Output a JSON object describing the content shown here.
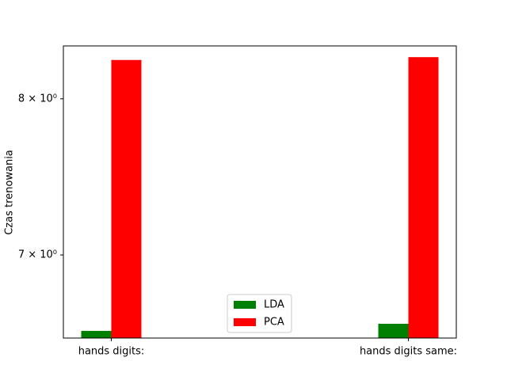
{
  "chart_data": {
    "type": "bar",
    "categories": [
      "hands digits:",
      "hands digits same:"
    ],
    "series": [
      {
        "name": "LDA",
        "color": "#008000",
        "values": [
          6.56,
          6.6
        ]
      },
      {
        "name": "PCA",
        "color": "#ff0000",
        "values": [
          8.27,
          8.29
        ]
      }
    ],
    "ylabel": "Czas trenowania",
    "xlabel": "",
    "yscale": "log",
    "ylim": [
      6.52,
      8.37
    ],
    "yticks": [
      {
        "value": 7,
        "label": "7 × 10⁰"
      },
      {
        "value": 8,
        "label": "8 × 10⁰"
      }
    ],
    "legend_position": "lower-center",
    "grid": false
  }
}
